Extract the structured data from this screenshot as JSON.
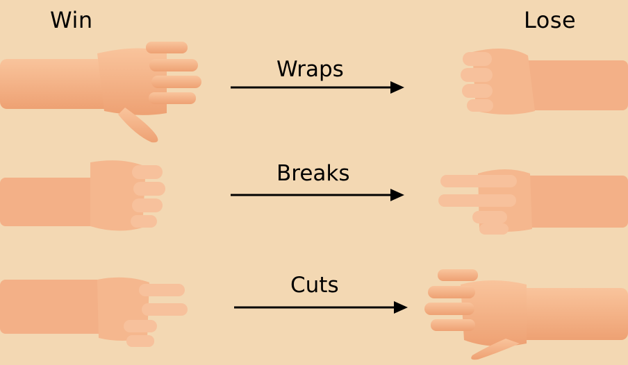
{
  "header": {
    "win_label": "Win",
    "lose_label": "Lose"
  },
  "rules": [
    {
      "winner": "paper",
      "loser": "rock",
      "verb": "Wraps"
    },
    {
      "winner": "rock",
      "loser": "scissors",
      "verb": "Breaks"
    },
    {
      "winner": "scissors",
      "loser": "paper",
      "verb": "Cuts"
    }
  ],
  "colors": {
    "background": "#f3d8b3",
    "skin": "#f5b58a",
    "skin_shadow": "#e39a6c",
    "arrow": "#000000"
  },
  "icons": {
    "paper": "open-hand-icon",
    "rock": "fist-icon",
    "scissors": "two-fingers-icon"
  }
}
